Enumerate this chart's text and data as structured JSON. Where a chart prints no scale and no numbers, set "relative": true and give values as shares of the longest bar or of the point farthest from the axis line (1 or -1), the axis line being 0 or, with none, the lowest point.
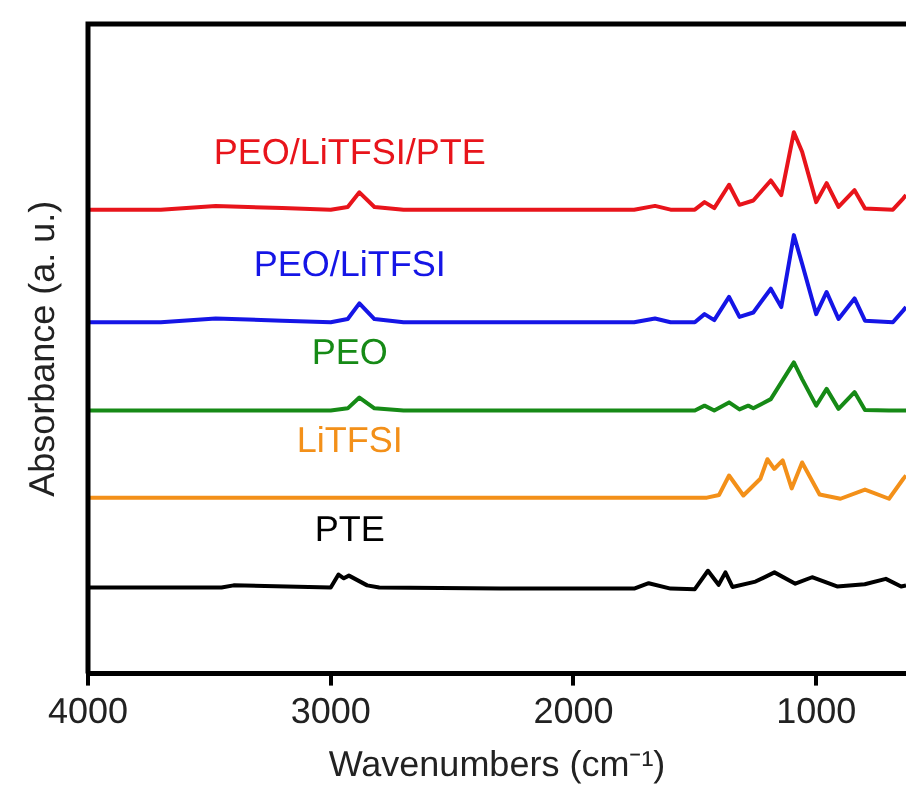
{
  "chart_data": {
    "type": "line",
    "relative": true,
    "xlabel": "Wavenumbers (cm⁻¹)",
    "ylabel": "Absorbance (a. u.)",
    "xlim": [
      4000,
      630
    ],
    "xticks": [
      4000,
      3000,
      2000,
      1000
    ],
    "grid": false,
    "legend": false,
    "marker": "none",
    "line_style": "solid",
    "tick_labels": "x",
    "series": [
      {
        "name": "PEO/LiTFSI/PTE",
        "color": "#e8141b",
        "x": [
          4000,
          3700,
          3474,
          3200,
          3000,
          2930,
          2882,
          2820,
          2700,
          2000,
          1750,
          1664,
          1600,
          1500,
          1460,
          1420,
          1359,
          1316,
          1259,
          1187,
          1144,
          1092,
          1058,
          1000,
          957,
          908,
          842,
          799,
          684,
          641,
          630
        ],
        "values": [
          0.857,
          0.857,
          0.864,
          0.86,
          0.857,
          0.862,
          0.889,
          0.862,
          0.857,
          0.857,
          0.857,
          0.864,
          0.857,
          0.857,
          0.871,
          0.86,
          0.903,
          0.866,
          0.874,
          0.911,
          0.884,
          1.0,
          0.964,
          0.871,
          0.906,
          0.862,
          0.893,
          0.859,
          0.857,
          0.878,
          0.884
        ]
      },
      {
        "name": "PEO/LiTFSI",
        "color": "#1515e6",
        "x": [
          4000,
          3700,
          3474,
          3200,
          3000,
          2930,
          2882,
          2820,
          2700,
          2000,
          1750,
          1664,
          1600,
          1500,
          1460,
          1420,
          1359,
          1316,
          1259,
          1187,
          1144,
          1092,
          1058,
          1000,
          957,
          908,
          842,
          799,
          684,
          641,
          630
        ],
        "values": [
          0.649,
          0.649,
          0.656,
          0.652,
          0.649,
          0.655,
          0.684,
          0.655,
          0.649,
          0.649,
          0.649,
          0.656,
          0.649,
          0.649,
          0.664,
          0.653,
          0.696,
          0.659,
          0.667,
          0.711,
          0.677,
          0.81,
          0.757,
          0.664,
          0.705,
          0.655,
          0.693,
          0.652,
          0.649,
          0.671,
          0.677
        ]
      },
      {
        "name": "PEO",
        "color": "#168a16",
        "x": [
          4000,
          3000,
          2930,
          2882,
          2820,
          2700,
          1500,
          1460,
          1420,
          1359,
          1316,
          1280,
          1259,
          1187,
          1092,
          1058,
          1000,
          957,
          908,
          842,
          799,
          700,
          630
        ],
        "values": [
          0.486,
          0.486,
          0.49,
          0.51,
          0.49,
          0.486,
          0.486,
          0.495,
          0.486,
          0.501,
          0.488,
          0.495,
          0.49,
          0.507,
          0.575,
          0.544,
          0.495,
          0.526,
          0.489,
          0.52,
          0.487,
          0.486,
          0.486
        ]
      },
      {
        "name": "LiTFSI",
        "color": "#f39019",
        "x": [
          4000,
          3000,
          2000,
          1450,
          1400,
          1359,
          1300,
          1230,
          1201,
          1173,
          1138,
          1101,
          1058,
          986,
          900,
          799,
          700,
          641,
          630
        ],
        "values": [
          0.325,
          0.325,
          0.325,
          0.325,
          0.33,
          0.366,
          0.329,
          0.36,
          0.396,
          0.378,
          0.394,
          0.342,
          0.39,
          0.331,
          0.323,
          0.34,
          0.323,
          0.36,
          0.366
        ]
      },
      {
        "name": "PTE",
        "color": "#000000",
        "x": [
          4000,
          3450,
          3400,
          3000,
          2968,
          2946,
          2925,
          2850,
          2800,
          2300,
          1750,
          1690,
          1600,
          1500,
          1446,
          1402,
          1374,
          1345,
          1250,
          1172,
          1086,
          1017,
          914,
          800,
          713,
          650,
          630
        ],
        "values": [
          0.159,
          0.159,
          0.163,
          0.159,
          0.183,
          0.176,
          0.181,
          0.163,
          0.159,
          0.157,
          0.157,
          0.167,
          0.157,
          0.156,
          0.19,
          0.164,
          0.187,
          0.16,
          0.17,
          0.187,
          0.166,
          0.178,
          0.161,
          0.165,
          0.175,
          0.161,
          0.163
        ]
      }
    ]
  }
}
